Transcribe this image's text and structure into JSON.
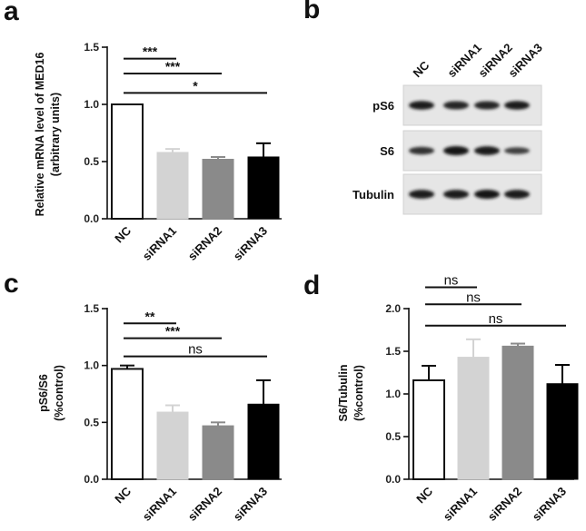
{
  "panel_letters": {
    "a": "a",
    "b": "b",
    "c": "c",
    "d": "d"
  },
  "chart_data": [
    {
      "panel": "a",
      "type": "bar",
      "categories": [
        "NC",
        "siRNA1",
        "siRNA2",
        "siRNA3"
      ],
      "values": [
        1.0,
        0.58,
        0.52,
        0.54
      ],
      "errors": [
        0,
        0.03,
        0.02,
        0.12
      ],
      "bar_colors": [
        "#ffffff",
        "#d3d3d3",
        "#8a8a8a",
        "#000000"
      ],
      "ylabel": [
        "Relative mRNA level of MED16",
        "(arbitrary units)"
      ],
      "ylim": [
        0,
        1.5
      ],
      "yticks": [
        0,
        0.5,
        1.0,
        1.5
      ],
      "ytick_labels": [
        "0.0",
        "0.5",
        "1.0",
        "1.5"
      ],
      "significance": [
        {
          "from": 0,
          "to": 1,
          "label": "***",
          "y": 1.4
        },
        {
          "from": 0,
          "to": 2,
          "label": "***",
          "y": 1.27
        },
        {
          "from": 0,
          "to": 3,
          "label": "*",
          "y": 1.1
        }
      ]
    },
    {
      "panel": "c",
      "type": "bar",
      "categories": [
        "NC",
        "siRNA1",
        "siRNA2",
        "siRNA3"
      ],
      "values": [
        0.97,
        0.59,
        0.47,
        0.66
      ],
      "errors": [
        0.03,
        0.06,
        0.03,
        0.21
      ],
      "bar_colors": [
        "#ffffff",
        "#d3d3d3",
        "#8a8a8a",
        "#000000"
      ],
      "ylabel": [
        "pS6/S6",
        "(%control)"
      ],
      "ylim": [
        0,
        1.5
      ],
      "yticks": [
        0,
        0.5,
        1.0,
        1.5
      ],
      "ytick_labels": [
        "0.0",
        "0.5",
        "1.0",
        "1.5"
      ],
      "significance": [
        {
          "from": 0,
          "to": 1,
          "label": "**",
          "y": 1.37
        },
        {
          "from": 0,
          "to": 2,
          "label": "***",
          "y": 1.24
        },
        {
          "from": 0,
          "to": 3,
          "label": "ns",
          "y": 1.08
        }
      ]
    },
    {
      "panel": "d",
      "type": "bar",
      "categories": [
        "NC",
        "siRNA1",
        "siRNA2",
        "siRNA3"
      ],
      "values": [
        1.16,
        1.43,
        1.56,
        1.12
      ],
      "errors": [
        0.17,
        0.21,
        0.03,
        0.22
      ],
      "bar_colors": [
        "#ffffff",
        "#d3d3d3",
        "#8a8a8a",
        "#000000"
      ],
      "ylabel": [
        "S6/Tubulin",
        "(%control)"
      ],
      "ylim": [
        0,
        2.0
      ],
      "yticks": [
        0,
        0.5,
        1.0,
        1.5,
        2.0
      ],
      "ytick_labels": [
        "0.0",
        "0.5",
        "1.0",
        "1.5",
        "2.0"
      ],
      "significance": [
        {
          "from": 0,
          "to": 1,
          "label": "ns",
          "y": 2.25
        },
        {
          "from": 0,
          "to": 2,
          "label": "ns",
          "y": 2.05
        },
        {
          "from": 0,
          "to": 3,
          "label": "ns",
          "y": 1.8
        }
      ]
    }
  ],
  "blot": {
    "lanes": [
      "NC",
      "siRNA1",
      "siRNA2",
      "siRNA3"
    ],
    "rows": [
      {
        "label": "pS6",
        "intensity": [
          0.9,
          0.85,
          0.85,
          0.9
        ]
      },
      {
        "label": "S6",
        "intensity": [
          0.75,
          1.0,
          0.95,
          0.6
        ]
      },
      {
        "label": "Tubulin",
        "intensity": [
          0.95,
          0.95,
          1.0,
          0.95
        ]
      }
    ]
  }
}
